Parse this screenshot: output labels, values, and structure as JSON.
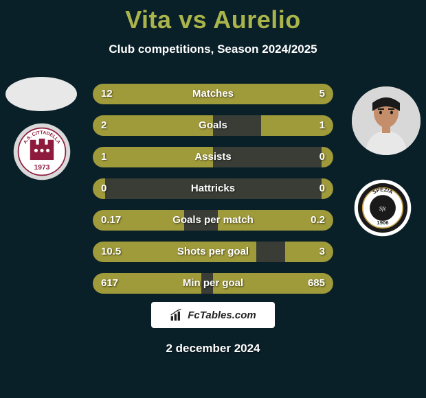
{
  "title": "Vita vs Aurelio",
  "subtitle": "Club competitions, Season 2024/2025",
  "date": "2 december 2024",
  "footer_brand": "FcTables.com",
  "colors": {
    "fill": "#9f9a3a",
    "track": "#3a3d36",
    "title": "#a9b44a",
    "bg": "#0a2029"
  },
  "club_left": {
    "name": "A.S. Cittadella",
    "year": "1973",
    "ring_outer": "#d9d9d9",
    "ring_inner": "#8e1b3e",
    "fill": "#ffffff"
  },
  "club_right": {
    "name": "Spezia",
    "year": "1906",
    "ring_outer": "#ffffff",
    "ring_mid": "#1a1a1a",
    "accent": "#c7a14a"
  },
  "stats": [
    {
      "label": "Matches",
      "left_val": "12",
      "right_val": "5",
      "left_pct": 66,
      "right_pct": 34
    },
    {
      "label": "Goals",
      "left_val": "2",
      "right_val": "1",
      "left_pct": 50,
      "right_pct": 30
    },
    {
      "label": "Assists",
      "left_val": "1",
      "right_val": "0",
      "left_pct": 50,
      "right_pct": 5
    },
    {
      "label": "Hattricks",
      "left_val": "0",
      "right_val": "0",
      "left_pct": 5,
      "right_pct": 5
    },
    {
      "label": "Goals per match",
      "left_val": "0.17",
      "right_val": "0.2",
      "left_pct": 38,
      "right_pct": 48
    },
    {
      "label": "Shots per goal",
      "left_val": "10.5",
      "right_val": "3",
      "left_pct": 68,
      "right_pct": 20
    },
    {
      "label": "Min per goal",
      "left_val": "617",
      "right_val": "685",
      "left_pct": 45,
      "right_pct": 50
    }
  ]
}
